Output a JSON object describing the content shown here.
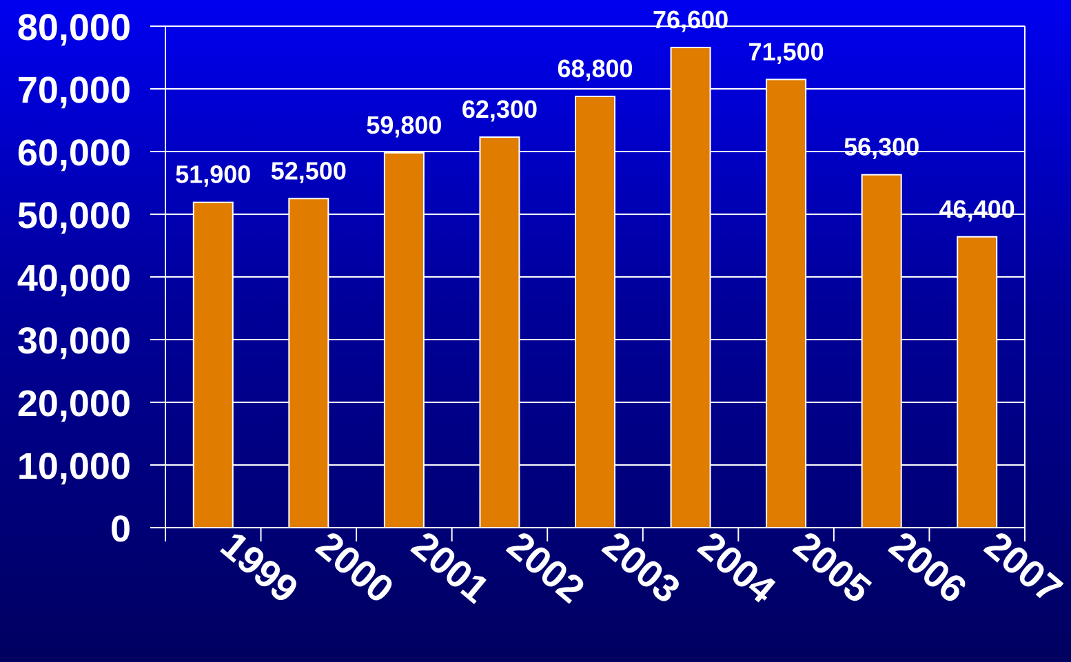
{
  "chart_data": {
    "type": "bar",
    "title": "",
    "xlabel": "",
    "ylabel": "",
    "categories": [
      "1999",
      "2000",
      "2001",
      "2002",
      "2003",
      "2004",
      "2005",
      "2006",
      "2007"
    ],
    "values": [
      51900,
      52500,
      59800,
      62300,
      68800,
      76600,
      71500,
      56300,
      46400
    ],
    "data_labels": [
      "51,900",
      "52,500",
      "59,800",
      "62,300",
      "68,800",
      "76,600",
      "71,500",
      "56,300",
      "46,400"
    ],
    "ylim": [
      0,
      80000
    ],
    "yticks": [
      0,
      10000,
      20000,
      30000,
      40000,
      50000,
      60000,
      70000,
      80000
    ],
    "ytick_labels": [
      "0",
      "10,000",
      "20,000",
      "30,000",
      "40,000",
      "50,000",
      "60,000",
      "70,000",
      "80,000"
    ],
    "grid": true,
    "legend": "none",
    "colors": {
      "bar": "#E07C00",
      "bar_edge": "#FFFFFF",
      "grid": "#FFFFFF",
      "text": "#FFFFFF",
      "background_top": "#0000F0",
      "background_bottom": "#000060"
    }
  }
}
